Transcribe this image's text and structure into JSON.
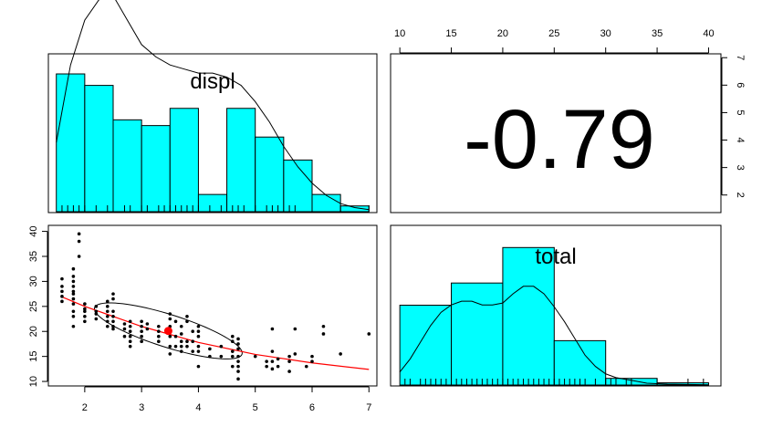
{
  "chart_data": {
    "type": "pairs",
    "variables": [
      "displ",
      "total"
    ],
    "panels": {
      "displ_hist": {
        "type": "histogram",
        "label": "displ",
        "bin_edges": [
          1.5,
          2.0,
          2.5,
          3.0,
          3.5,
          4.0,
          4.5,
          5.0,
          5.5,
          6.0,
          6.5,
          7.0
        ],
        "counts": [
          24,
          22,
          16,
          15,
          18,
          3,
          18,
          13,
          9,
          3,
          1
        ],
        "density_curve": [
          [
            1.5,
            0.17
          ],
          [
            1.75,
            0.36
          ],
          [
            2.0,
            0.47
          ],
          [
            2.25,
            0.52
          ],
          [
            2.5,
            0.53
          ],
          [
            2.75,
            0.47
          ],
          [
            3.0,
            0.41
          ],
          [
            3.25,
            0.38
          ],
          [
            3.5,
            0.36
          ],
          [
            3.75,
            0.35
          ],
          [
            4.0,
            0.34
          ],
          [
            4.25,
            0.34
          ],
          [
            4.5,
            0.33
          ],
          [
            4.75,
            0.31
          ],
          [
            5.0,
            0.27
          ],
          [
            5.25,
            0.22
          ],
          [
            5.5,
            0.16
          ],
          [
            5.75,
            0.11
          ],
          [
            6.0,
            0.07
          ],
          [
            6.25,
            0.04
          ],
          [
            6.5,
            0.02
          ],
          [
            6.75,
            0.01
          ],
          [
            7.0,
            0.005
          ]
        ],
        "rug": [
          1.6,
          1.7,
          1.8,
          1.9,
          2.0,
          2.2,
          2.4,
          2.5,
          2.7,
          2.8,
          3.0,
          3.1,
          3.3,
          3.4,
          3.5,
          3.6,
          3.7,
          3.8,
          3.9,
          4.0,
          4.2,
          4.4,
          4.6,
          4.7,
          4.8,
          5.0,
          5.2,
          5.3,
          5.4,
          5.6,
          5.7,
          6.0,
          6.5,
          7.0
        ]
      },
      "correlation": {
        "type": "text",
        "value": "-0.79",
        "top_axis": {
          "ticks": [
            10,
            15,
            20,
            25,
            30,
            35,
            40
          ],
          "range": [
            9.1,
            41.2
          ]
        },
        "right_axis": {
          "ticks": [
            2,
            3,
            4,
            5,
            6,
            7
          ],
          "range": [
            1.36,
            7.14
          ]
        }
      },
      "scatter": {
        "type": "scatter",
        "x_variable": "displ",
        "y_variable": "total",
        "xlim": [
          1.36,
          7.14
        ],
        "ylim": [
          9.1,
          41.2
        ],
        "x_ticks": [
          2,
          3,
          4,
          5,
          6,
          7
        ],
        "y_ticks": [
          10,
          15,
          20,
          25,
          30,
          35,
          40
        ],
        "points": [
          [
            1.6,
            28
          ],
          [
            1.6,
            29
          ],
          [
            1.6,
            30.5
          ],
          [
            1.6,
            27
          ],
          [
            1.6,
            26
          ],
          [
            1.8,
            28
          ],
          [
            1.8,
            29
          ],
          [
            1.8,
            30
          ],
          [
            1.8,
            31
          ],
          [
            1.8,
            32.5
          ],
          [
            1.8,
            26.5
          ],
          [
            1.8,
            27.5
          ],
          [
            1.8,
            23
          ],
          [
            1.8,
            21
          ],
          [
            1.8,
            24
          ],
          [
            1.8,
            25.5
          ],
          [
            1.9,
            39.5
          ],
          [
            1.9,
            38
          ],
          [
            1.9,
            35
          ],
          [
            2.0,
            25.5
          ],
          [
            2.0,
            24.5
          ],
          [
            2.0,
            23
          ],
          [
            2.0,
            22
          ],
          [
            2.0,
            24
          ],
          [
            2.2,
            23.5
          ],
          [
            2.2,
            24
          ],
          [
            2.2,
            25
          ],
          [
            2.2,
            22.5
          ],
          [
            2.4,
            22
          ],
          [
            2.4,
            23
          ],
          [
            2.4,
            24
          ],
          [
            2.4,
            25
          ],
          [
            2.4,
            26
          ],
          [
            2.4,
            21
          ],
          [
            2.5,
            22
          ],
          [
            2.5,
            21
          ],
          [
            2.5,
            23
          ],
          [
            2.5,
            24
          ],
          [
            2.5,
            26.5
          ],
          [
            2.5,
            27.5
          ],
          [
            2.5,
            20.5
          ],
          [
            2.7,
            20.5
          ],
          [
            2.7,
            21.5
          ],
          [
            2.7,
            19
          ],
          [
            2.8,
            18
          ],
          [
            2.8,
            19
          ],
          [
            2.8,
            20
          ],
          [
            2.8,
            17
          ],
          [
            2.8,
            21
          ],
          [
            2.8,
            22
          ],
          [
            3.0,
            20
          ],
          [
            3.0,
            21
          ],
          [
            3.0,
            19
          ],
          [
            3.0,
            18
          ],
          [
            3.0,
            22
          ],
          [
            3.1,
            20.5
          ],
          [
            3.1,
            21.5
          ],
          [
            3.3,
            19
          ],
          [
            3.3,
            20
          ],
          [
            3.3,
            21
          ],
          [
            3.3,
            18
          ],
          [
            3.5,
            21
          ],
          [
            3.5,
            19
          ],
          [
            3.5,
            17
          ],
          [
            3.5,
            22.5
          ],
          [
            3.5,
            23.5
          ],
          [
            3.5,
            15.5
          ],
          [
            3.6,
            22
          ],
          [
            3.6,
            17
          ],
          [
            3.6,
            19
          ],
          [
            3.7,
            17
          ],
          [
            3.7,
            18
          ],
          [
            3.7,
            19.5
          ],
          [
            3.7,
            21
          ],
          [
            3.7,
            16
          ],
          [
            3.8,
            23
          ],
          [
            3.8,
            17
          ],
          [
            3.8,
            18
          ],
          [
            3.8,
            22
          ],
          [
            3.9,
            16
          ],
          [
            3.9,
            18
          ],
          [
            3.9,
            20
          ],
          [
            4.0,
            16
          ],
          [
            4.0,
            17
          ],
          [
            4.0,
            19
          ],
          [
            4.0,
            20
          ],
          [
            4.0,
            21
          ],
          [
            4.0,
            13
          ],
          [
            4.2,
            15
          ],
          [
            4.2,
            16.5
          ],
          [
            4.4,
            15
          ],
          [
            4.4,
            17
          ],
          [
            4.6,
            13
          ],
          [
            4.6,
            15
          ],
          [
            4.6,
            16
          ],
          [
            4.6,
            18
          ],
          [
            4.6,
            19
          ],
          [
            4.7,
            13
          ],
          [
            4.7,
            14
          ],
          [
            4.7,
            15
          ],
          [
            4.7,
            16.5
          ],
          [
            4.7,
            10.5
          ],
          [
            4.7,
            12
          ],
          [
            4.7,
            17.5
          ],
          [
            4.7,
            18.5
          ],
          [
            5.0,
            15
          ],
          [
            5.2,
            13
          ],
          [
            5.2,
            14
          ],
          [
            5.3,
            14
          ],
          [
            5.3,
            12.5
          ],
          [
            5.3,
            16
          ],
          [
            5.3,
            20.5
          ],
          [
            5.4,
            13
          ],
          [
            5.4,
            14.5
          ],
          [
            5.6,
            15
          ],
          [
            5.6,
            14
          ],
          [
            5.6,
            12
          ],
          [
            5.7,
            15.5
          ],
          [
            5.7,
            20.5
          ],
          [
            5.9,
            13
          ],
          [
            6.0,
            14
          ],
          [
            6.0,
            15
          ],
          [
            6.2,
            19.5
          ],
          [
            6.2,
            21
          ],
          [
            6.5,
            15.5
          ],
          [
            7.0,
            19.5
          ]
        ],
        "mean_point": [
          3.47,
          20.1
        ],
        "mean_point_color": "#ff0000",
        "smooth_line": [
          [
            1.6,
            26.9
          ],
          [
            2.0,
            25.0
          ],
          [
            3.0,
            21.0
          ],
          [
            4.0,
            17.8
          ],
          [
            5.0,
            15.4
          ],
          [
            6.0,
            13.7
          ],
          [
            7.0,
            12.4
          ]
        ],
        "smooth_color": "#ff0000",
        "ellipse": {
          "cx": 3.47,
          "cy": 20.1,
          "sx": 1.3,
          "sy": 5.6,
          "r": -0.79,
          "scale": 1.0
        }
      },
      "total_hist": {
        "type": "histogram",
        "label": "total",
        "bin_edges": [
          10,
          15,
          20,
          25,
          30,
          35,
          40
        ],
        "counts": [
          36,
          46,
          62,
          20,
          3,
          1
        ],
        "density_curve": [
          [
            10,
            0.07
          ],
          [
            11,
            0.14
          ],
          [
            12,
            0.23
          ],
          [
            13,
            0.32
          ],
          [
            14,
            0.39
          ],
          [
            15,
            0.43
          ],
          [
            16,
            0.45
          ],
          [
            17,
            0.45
          ],
          [
            18,
            0.43
          ],
          [
            19,
            0.43
          ],
          [
            20,
            0.44
          ],
          [
            21,
            0.49
          ],
          [
            22,
            0.53
          ],
          [
            23,
            0.53
          ],
          [
            24,
            0.49
          ],
          [
            25,
            0.42
          ],
          [
            26,
            0.34
          ],
          [
            27,
            0.25
          ],
          [
            28,
            0.16
          ],
          [
            29,
            0.1
          ],
          [
            30,
            0.06
          ],
          [
            31,
            0.04
          ],
          [
            32,
            0.03
          ],
          [
            33,
            0.02
          ],
          [
            34,
            0.01
          ],
          [
            36,
            0.005
          ],
          [
            38,
            0.003
          ],
          [
            40,
            0.001
          ]
        ],
        "rug": [
          10.5,
          11,
          12,
          12.5,
          13,
          13.5,
          14,
          14.5,
          15,
          15.5,
          16,
          16.5,
          17,
          17.5,
          18,
          18.5,
          19,
          19.5,
          20,
          20.5,
          21,
          21.5,
          22,
          22.5,
          23,
          23.5,
          24,
          24.5,
          25,
          25.5,
          26,
          26.5,
          27,
          27.5,
          28,
          29,
          30,
          30.5,
          31,
          32,
          32.5,
          35,
          38,
          39.5
        ]
      }
    },
    "colors": {
      "histogram_fill": "#00ffff",
      "points": "#000000",
      "smooth": "#ff0000",
      "mean": "#ff0000"
    }
  }
}
